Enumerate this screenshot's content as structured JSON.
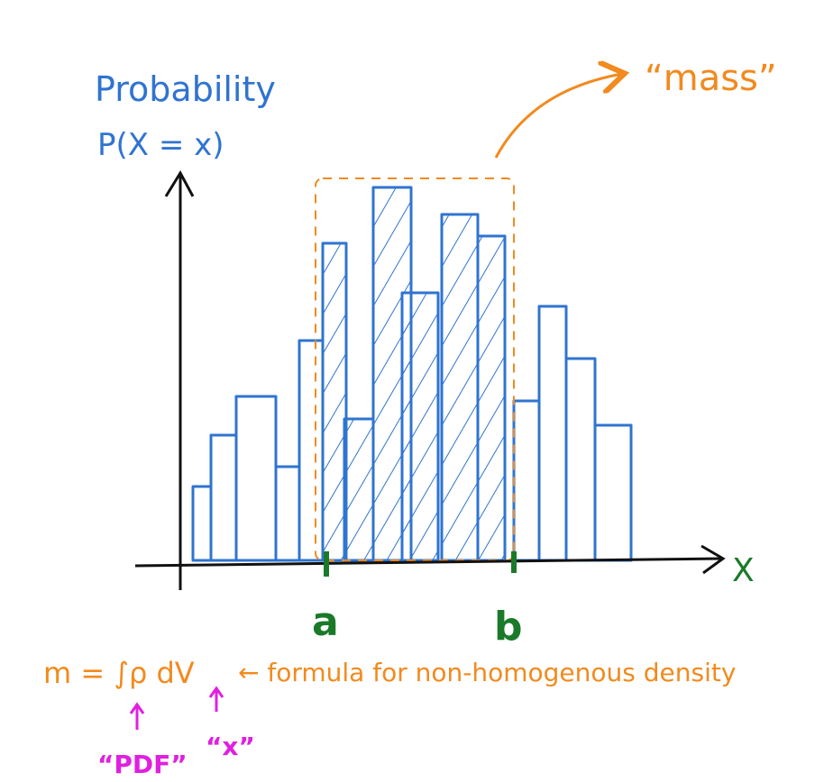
{
  "labels": {
    "y_title": "Probability",
    "y_subtitle": "P(X = x)",
    "mass": "“mass”",
    "x_axis": "X",
    "a": "a",
    "b": "b",
    "formula": "m = ∫ρ dV",
    "formula_note": "← formula for non-homogenous density",
    "pdf": "“PDF”",
    "x_note": "“x”"
  }
}
